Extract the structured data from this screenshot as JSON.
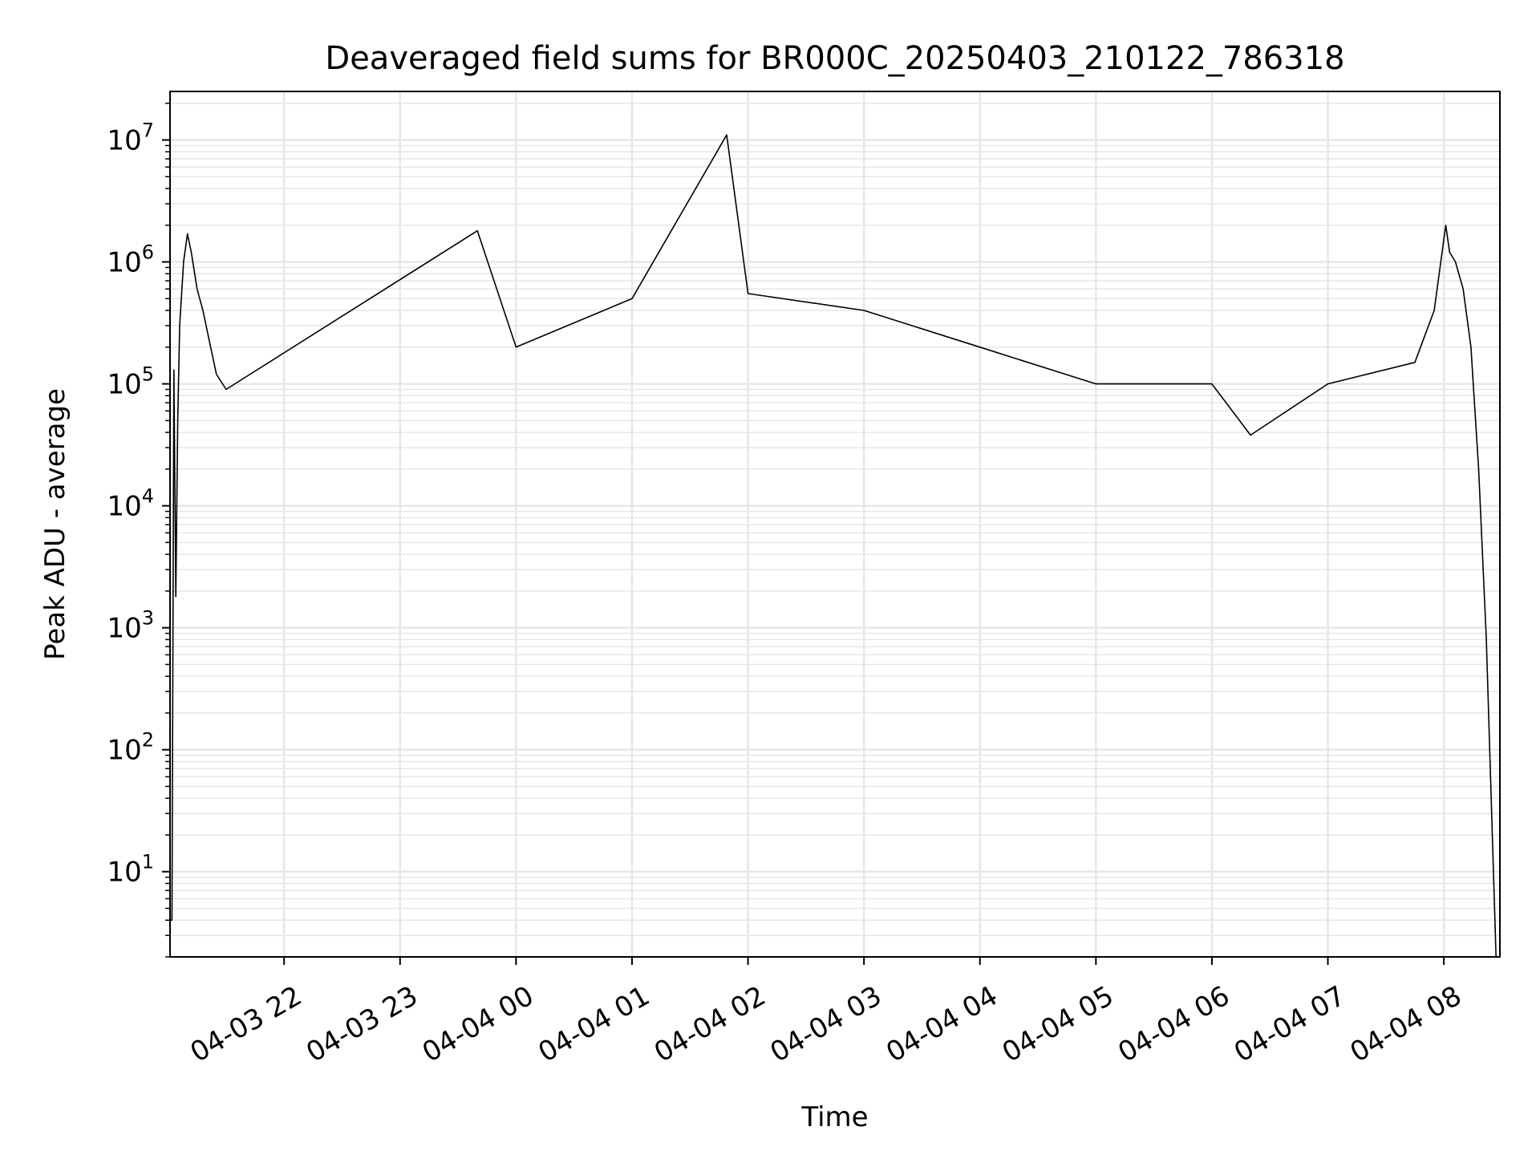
{
  "chart_data": {
    "type": "line",
    "title": "Deaveraged field sums for BR000C_20250403_210122_786318",
    "xlabel": "Time",
    "ylabel": "Peak ADU - average",
    "yscale": "log",
    "ylim": [
      2,
      25000000
    ],
    "xlim": [
      "2025-04-03 21:01",
      "2025-04-04 08:29"
    ],
    "grid": true,
    "line_color": "#000000",
    "grid_color": "#e6e6e6",
    "x_ticks": [
      {
        "t": "2025-04-03 22:00",
        "label": "04-03 22"
      },
      {
        "t": "2025-04-03 23:00",
        "label": "04-03 23"
      },
      {
        "t": "2025-04-04 00:00",
        "label": "04-04 00"
      },
      {
        "t": "2025-04-04 01:00",
        "label": "04-04 01"
      },
      {
        "t": "2025-04-04 02:00",
        "label": "04-04 02"
      },
      {
        "t": "2025-04-04 03:00",
        "label": "04-04 03"
      },
      {
        "t": "2025-04-04 04:00",
        "label": "04-04 04"
      },
      {
        "t": "2025-04-04 05:00",
        "label": "04-04 05"
      },
      {
        "t": "2025-04-04 06:00",
        "label": "04-04 06"
      },
      {
        "t": "2025-04-04 07:00",
        "label": "04-04 07"
      },
      {
        "t": "2025-04-04 08:00",
        "label": "04-04 08"
      }
    ],
    "y_ticks": [
      {
        "value": 10,
        "base": "10",
        "exp": "1"
      },
      {
        "value": 100,
        "base": "10",
        "exp": "2"
      },
      {
        "value": 1000,
        "base": "10",
        "exp": "3"
      },
      {
        "value": 10000,
        "base": "10",
        "exp": "4"
      },
      {
        "value": 100000,
        "base": "10",
        "exp": "5"
      },
      {
        "value": 1000000,
        "base": "10",
        "exp": "6"
      },
      {
        "value": 10000000,
        "base": "10",
        "exp": "7"
      }
    ],
    "series": [
      {
        "points": [
          [
            "2025-04-03 21:01",
            4
          ],
          [
            "2025-04-03 21:02",
            4
          ],
          [
            "2025-04-03 21:03",
            130000
          ],
          [
            "2025-04-03 21:04",
            1800
          ],
          [
            "2025-04-03 21:05",
            50000
          ],
          [
            "2025-04-03 21:06",
            300000
          ],
          [
            "2025-04-03 21:08",
            1000000
          ],
          [
            "2025-04-03 21:10",
            1700000
          ],
          [
            "2025-04-03 21:12",
            1200000
          ],
          [
            "2025-04-03 21:15",
            600000
          ],
          [
            "2025-04-03 21:18",
            400000
          ],
          [
            "2025-04-03 21:22",
            200000
          ],
          [
            "2025-04-03 21:25",
            120000
          ],
          [
            "2025-04-03 21:30",
            90000
          ],
          [
            "2025-04-03 23:40",
            1800000
          ],
          [
            "2025-04-04 00:00",
            200000
          ],
          [
            "2025-04-04 01:00",
            500000
          ],
          [
            "2025-04-04 01:49",
            11000000
          ],
          [
            "2025-04-04 02:00",
            550000
          ],
          [
            "2025-04-04 03:00",
            400000
          ],
          [
            "2025-04-04 04:00",
            200000
          ],
          [
            "2025-04-04 05:00",
            100000
          ],
          [
            "2025-04-04 06:00",
            100000
          ],
          [
            "2025-04-04 06:20",
            38000
          ],
          [
            "2025-04-04 07:00",
            100000
          ],
          [
            "2025-04-04 07:45",
            150000
          ],
          [
            "2025-04-04 07:55",
            400000
          ],
          [
            "2025-04-04 08:01",
            2000000
          ],
          [
            "2025-04-04 08:03",
            1200000
          ],
          [
            "2025-04-04 08:06",
            1000000
          ],
          [
            "2025-04-04 08:10",
            600000
          ],
          [
            "2025-04-04 08:14",
            200000
          ],
          [
            "2025-04-04 08:18",
            20000
          ],
          [
            "2025-04-04 08:22",
            800
          ],
          [
            "2025-04-04 08:27",
            2
          ]
        ]
      }
    ]
  }
}
